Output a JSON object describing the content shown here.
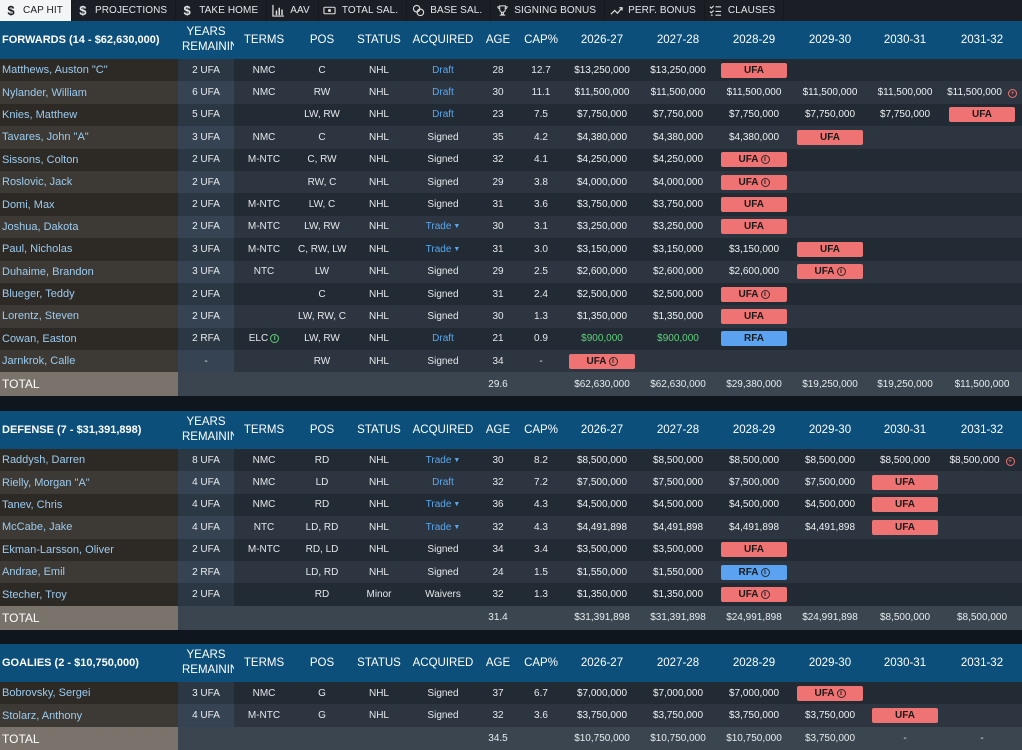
{
  "tabs": [
    {
      "label": "CAP HIT",
      "icon": "dollar-icon",
      "active": true
    },
    {
      "label": "PROJECTIONS",
      "icon": "dollar-icon"
    },
    {
      "label": "TAKE HOME",
      "icon": "dollar-icon"
    },
    {
      "label": "AAV",
      "icon": "bar-chart-icon"
    },
    {
      "label": "TOTAL SAL.",
      "icon": "cash-icon"
    },
    {
      "label": "BASE SAL.",
      "icon": "coins-icon"
    },
    {
      "label": "SIGNING BONUS",
      "icon": "trophy-icon"
    },
    {
      "label": "PERF. BONUS",
      "icon": "trend-icon"
    },
    {
      "label": "CLAUSES",
      "icon": "checklist-icon"
    }
  ],
  "columns": {
    "years": "YEARS REMAINING",
    "terms": "TERMS",
    "pos": "POS",
    "status": "STATUS",
    "acquired": "ACQUIRED",
    "age": "AGE",
    "cap": "CAP%",
    "seasons": [
      "2026-27",
      "2027-28",
      "2028-29",
      "2029-30",
      "2030-31",
      "2031-32"
    ]
  },
  "sections": [
    {
      "title": "FORWARDS (14 - $62,630,000)",
      "players": [
        {
          "name": "Matthews, Auston \"C\"",
          "years": "2 UFA",
          "terms": "NMC",
          "pos": "C",
          "status": "NHL",
          "acquired": "Draft",
          "acq_link": true,
          "age": "28",
          "cap": "12.7",
          "seasons": [
            "$13,250,000",
            "$13,250,000",
            {
              "badge": "UFA"
            },
            "",
            "",
            ""
          ]
        },
        {
          "name": "Nylander, William",
          "years": "6 UFA",
          "terms": "NMC",
          "pos": "RW",
          "status": "NHL",
          "acquired": "Draft",
          "acq_link": true,
          "age": "30",
          "cap": "11.1",
          "seasons": [
            "$11,500,000",
            "$11,500,000",
            "$11,500,000",
            "$11,500,000",
            "$11,500,000",
            "$11,500,000"
          ],
          "more": true
        },
        {
          "name": "Knies, Matthew",
          "years": "5 UFA",
          "terms": "",
          "pos": "LW, RW",
          "status": "NHL",
          "acquired": "Draft",
          "acq_link": true,
          "age": "23",
          "cap": "7.5",
          "seasons": [
            "$7,750,000",
            "$7,750,000",
            "$7,750,000",
            "$7,750,000",
            "$7,750,000",
            {
              "badge": "UFA"
            }
          ]
        },
        {
          "name": "Tavares, John \"A\"",
          "years": "3 UFA",
          "terms": "NMC",
          "pos": "C",
          "status": "NHL",
          "acquired": "Signed",
          "acq_link": false,
          "age": "35",
          "cap": "4.2",
          "seasons": [
            "$4,380,000",
            "$4,380,000",
            "$4,380,000",
            {
              "badge": "UFA"
            },
            "",
            ""
          ]
        },
        {
          "name": "Sissons, Colton",
          "years": "2 UFA",
          "terms": "M-NTC",
          "pos": "C, RW",
          "status": "NHL",
          "acquired": "Signed",
          "acq_link": false,
          "age": "32",
          "cap": "4.1",
          "seasons": [
            "$4,250,000",
            "$4,250,000",
            {
              "badge": "UFA",
              "info": true
            },
            "",
            "",
            ""
          ]
        },
        {
          "name": "Roslovic, Jack",
          "years": "2 UFA",
          "terms": "",
          "pos": "RW, C",
          "status": "NHL",
          "acquired": "Signed",
          "acq_link": false,
          "age": "29",
          "cap": "3.8",
          "seasons": [
            "$4,000,000",
            "$4,000,000",
            {
              "badge": "UFA",
              "info": true
            },
            "",
            "",
            ""
          ]
        },
        {
          "name": "Domi, Max",
          "years": "2 UFA",
          "terms": "M-NTC",
          "pos": "LW, C",
          "status": "NHL",
          "acquired": "Signed",
          "acq_link": false,
          "age": "31",
          "cap": "3.6",
          "seasons": [
            "$3,750,000",
            "$3,750,000",
            {
              "badge": "UFA"
            },
            "",
            "",
            ""
          ]
        },
        {
          "name": "Joshua, Dakota",
          "years": "2 UFA",
          "terms": "M-NTC",
          "pos": "LW, RW",
          "status": "NHL",
          "acquired": "Trade",
          "acq_link": true,
          "acq_chev": true,
          "age": "30",
          "cap": "3.1",
          "seasons": [
            "$3,250,000",
            "$3,250,000",
            {
              "badge": "UFA"
            },
            "",
            "",
            ""
          ]
        },
        {
          "name": "Paul, Nicholas",
          "years": "3 UFA",
          "terms": "M-NTC",
          "pos": "C, RW, LW",
          "status": "NHL",
          "acquired": "Trade",
          "acq_link": true,
          "acq_chev": true,
          "age": "31",
          "cap": "3.0",
          "seasons": [
            "$3,150,000",
            "$3,150,000",
            "$3,150,000",
            {
              "badge": "UFA"
            },
            "",
            ""
          ]
        },
        {
          "name": "Duhaime, Brandon",
          "years": "3 UFA",
          "terms": "NTC",
          "pos": "LW",
          "status": "NHL",
          "acquired": "Signed",
          "acq_link": false,
          "age": "29",
          "cap": "2.5",
          "seasons": [
            "$2,600,000",
            "$2,600,000",
            "$2,600,000",
            {
              "badge": "UFA",
              "info": true
            },
            "",
            ""
          ]
        },
        {
          "name": "Blueger, Teddy",
          "years": "2 UFA",
          "terms": "",
          "pos": "C",
          "status": "NHL",
          "acquired": "Signed",
          "acq_link": false,
          "age": "31",
          "cap": "2.4",
          "seasons": [
            "$2,500,000",
            "$2,500,000",
            {
              "badge": "UFA",
              "info": true
            },
            "",
            "",
            ""
          ]
        },
        {
          "name": "Lorentz, Steven",
          "years": "2 UFA",
          "terms": "",
          "pos": "LW, RW, C",
          "status": "NHL",
          "acquired": "Signed",
          "acq_link": false,
          "age": "30",
          "cap": "1.3",
          "seasons": [
            "$1,350,000",
            "$1,350,000",
            {
              "badge": "UFA"
            },
            "",
            "",
            ""
          ]
        },
        {
          "name": "Cowan, Easton",
          "years": "2 RFA",
          "terms": "ELC",
          "terms_info": true,
          "pos": "LW, RW",
          "status": "NHL",
          "acquired": "Draft",
          "acq_link": true,
          "age": "21",
          "cap": "0.9",
          "green": true,
          "seasons": [
            "$900,000",
            "$900,000",
            {
              "badge": "RFA"
            },
            "",
            "",
            ""
          ]
        },
        {
          "name": "Jarnkrok, Calle",
          "years": "-",
          "terms": "",
          "pos": "RW",
          "status": "NHL",
          "acquired": "Signed",
          "acq_link": false,
          "age": "34",
          "cap": "-",
          "seasons": [
            {
              "badge": "UFA",
              "info": true
            },
            "",
            "",
            "",
            "",
            ""
          ]
        }
      ],
      "total": {
        "label": "TOTAL",
        "age": "29.6",
        "seasons": [
          "$62,630,000",
          "$62,630,000",
          "$29,380,000",
          "$19,250,000",
          "$19,250,000",
          "$11,500,000"
        ]
      }
    },
    {
      "title": "DEFENSE (7 - $31,391,898)",
      "players": [
        {
          "name": "Raddysh, Darren",
          "years": "8 UFA",
          "terms": "NMC",
          "pos": "RD",
          "status": "NHL",
          "acquired": "Trade",
          "acq_link": true,
          "acq_chev": true,
          "age": "30",
          "cap": "8.2",
          "seasons": [
            "$8,500,000",
            "$8,500,000",
            "$8,500,000",
            "$8,500,000",
            "$8,500,000",
            "$8,500,000"
          ],
          "more": true
        },
        {
          "name": "Rielly, Morgan \"A\"",
          "years": "4 UFA",
          "terms": "NMC",
          "pos": "LD",
          "status": "NHL",
          "acquired": "Draft",
          "acq_link": true,
          "age": "32",
          "cap": "7.2",
          "seasons": [
            "$7,500,000",
            "$7,500,000",
            "$7,500,000",
            "$7,500,000",
            {
              "badge": "UFA"
            },
            ""
          ]
        },
        {
          "name": "Tanev, Chris",
          "years": "4 UFA",
          "terms": "NMC",
          "pos": "RD",
          "status": "NHL",
          "acquired": "Trade",
          "acq_link": true,
          "acq_chev": true,
          "age": "36",
          "cap": "4.3",
          "seasons": [
            "$4,500,000",
            "$4,500,000",
            "$4,500,000",
            "$4,500,000",
            {
              "badge": "UFA"
            },
            ""
          ]
        },
        {
          "name": "McCabe, Jake",
          "years": "4 UFA",
          "terms": "NTC",
          "pos": "LD, RD",
          "status": "NHL",
          "acquired": "Trade",
          "acq_link": true,
          "acq_chev": true,
          "age": "32",
          "cap": "4.3",
          "seasons": [
            "$4,491,898",
            "$4,491,898",
            "$4,491,898",
            "$4,491,898",
            {
              "badge": "UFA"
            },
            ""
          ]
        },
        {
          "name": "Ekman-Larsson, Oliver",
          "years": "2 UFA",
          "terms": "M-NTC",
          "pos": "RD, LD",
          "status": "NHL",
          "acquired": "Signed",
          "acq_link": false,
          "age": "34",
          "cap": "3.4",
          "seasons": [
            "$3,500,000",
            "$3,500,000",
            {
              "badge": "UFA"
            },
            "",
            "",
            ""
          ]
        },
        {
          "name": "Andrae, Emil",
          "years": "2 RFA",
          "terms": "",
          "pos": "LD, RD",
          "status": "NHL",
          "acquired": "Signed",
          "acq_link": false,
          "age": "24",
          "cap": "1.5",
          "seasons": [
            "$1,550,000",
            "$1,550,000",
            {
              "badge": "RFA",
              "info": true
            },
            "",
            "",
            ""
          ]
        },
        {
          "name": "Stecher, Troy",
          "years": "2 UFA",
          "terms": "",
          "pos": "RD",
          "status": "Minor",
          "acquired": "Waivers",
          "acq_link": false,
          "age": "32",
          "cap": "1.3",
          "seasons": [
            "$1,350,000",
            "$1,350,000",
            {
              "badge": "UFA",
              "info": true
            },
            "",
            "",
            ""
          ]
        }
      ],
      "total": {
        "label": "TOTAL",
        "age": "31.4",
        "seasons": [
          "$31,391,898",
          "$31,391,898",
          "$24,991,898",
          "$24,991,898",
          "$8,500,000",
          "$8,500,000"
        ]
      }
    },
    {
      "title": "GOALIES (2 - $10,750,000)",
      "players": [
        {
          "name": "Bobrovsky, Sergei",
          "years": "3 UFA",
          "terms": "NMC",
          "pos": "G",
          "status": "NHL",
          "acquired": "Signed",
          "acq_link": false,
          "age": "37",
          "cap": "6.7",
          "seasons": [
            "$7,000,000",
            "$7,000,000",
            "$7,000,000",
            {
              "badge": "UFA",
              "info": true
            },
            "",
            ""
          ]
        },
        {
          "name": "Stolarz, Anthony",
          "years": "4 UFA",
          "terms": "M-NTC",
          "pos": "G",
          "status": "NHL",
          "acquired": "Signed",
          "acq_link": false,
          "age": "32",
          "cap": "3.6",
          "seasons": [
            "$3,750,000",
            "$3,750,000",
            "$3,750,000",
            "$3,750,000",
            {
              "badge": "UFA"
            },
            ""
          ]
        }
      ],
      "total": {
        "label": "TOTAL",
        "age": "34.5",
        "seasons": [
          "$10,750,000",
          "$10,750,000",
          "$10,750,000",
          "$3,750,000",
          "-",
          "-"
        ]
      }
    }
  ]
}
